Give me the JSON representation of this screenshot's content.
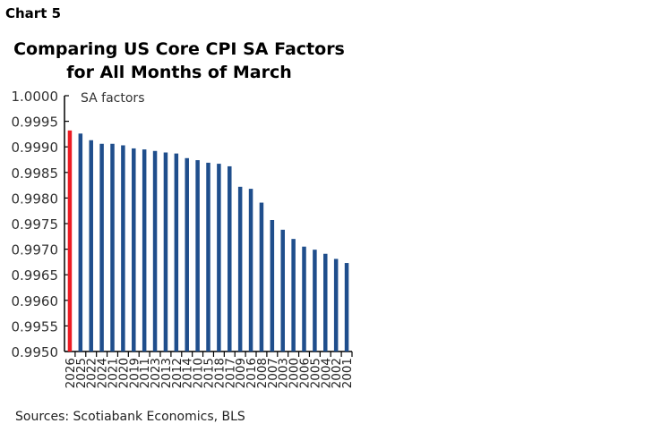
{
  "chart_label": "Chart 5",
  "chart_data": {
    "type": "bar",
    "title": "Comparing US Core CPI SA Factors for All Months of March",
    "title_lines": [
      "Comparing US Core CPI SA Factors",
      "for All Months of March"
    ],
    "annotation": "SA factors",
    "xlabel": "",
    "ylabel": "",
    "ylim": [
      0.995,
      1.0
    ],
    "yticks": [
      "1.0000",
      "0.9995",
      "0.9990",
      "0.9985",
      "0.9980",
      "0.9975",
      "0.9970",
      "0.9965",
      "0.9960",
      "0.9955",
      "0.9950"
    ],
    "grid": false,
    "categories": [
      "2026",
      "2025",
      "2022",
      "2024",
      "2021",
      "2020",
      "2019",
      "2011",
      "2023",
      "2013",
      "2012",
      "2014",
      "2010",
      "2015",
      "2018",
      "2017",
      "2009",
      "2016",
      "2008",
      "2007",
      "2003",
      "2000",
      "2006",
      "2005",
      "2004",
      "2002",
      "2001"
    ],
    "values": [
      0.99932,
      0.99926,
      0.99913,
      0.99906,
      0.99906,
      0.99903,
      0.99897,
      0.99895,
      0.99892,
      0.99889,
      0.99887,
      0.99878,
      0.99874,
      0.99869,
      0.99867,
      0.99862,
      0.99822,
      0.99818,
      0.99791,
      0.99757,
      0.99738,
      0.9972,
      0.99705,
      0.99699,
      0.99691,
      0.99681,
      0.99673
    ],
    "colors": {
      "highlight": "#ec1c24",
      "bars": "#1f4e8c"
    },
    "highlight_category": "2026"
  },
  "source": "Sources: Scotiabank Economics, BLS"
}
